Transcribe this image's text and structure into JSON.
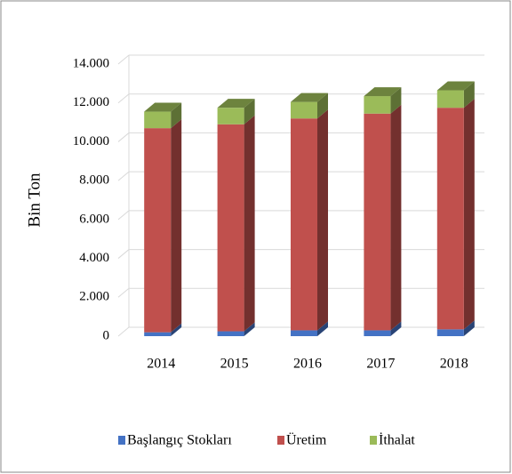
{
  "chart_data": {
    "type": "bar",
    "stacked": true,
    "y_label": "Bin Ton",
    "categories": [
      "2014",
      "2015",
      "2016",
      "2017",
      "2018"
    ],
    "series": [
      {
        "name": "Başlangıç Stokları",
        "color": "#4472c4",
        "values": [
          200,
          250,
          300,
          300,
          350
        ]
      },
      {
        "name": "Üretim",
        "color": "#c0504d",
        "values": [
          10500,
          10650,
          10900,
          11150,
          11400
        ]
      },
      {
        "name": "İthalat",
        "color": "#9bbb59",
        "values": [
          850,
          850,
          850,
          900,
          900
        ]
      }
    ],
    "ylim": [
      0,
      14000
    ],
    "yticks": [
      0,
      {
        "value": 2000,
        "label": "2.000"
      },
      {
        "value": 4000,
        "label": "4.000"
      },
      {
        "value": 6000,
        "label": "6.000"
      },
      {
        "value": 8000,
        "label": "8.000"
      },
      {
        "value": 10000,
        "label": "10.000"
      },
      {
        "value": 12000,
        "label": "12.000"
      },
      {
        "value": 14000,
        "label": "14.000"
      }
    ],
    "grid": true,
    "legend": "bottom"
  }
}
